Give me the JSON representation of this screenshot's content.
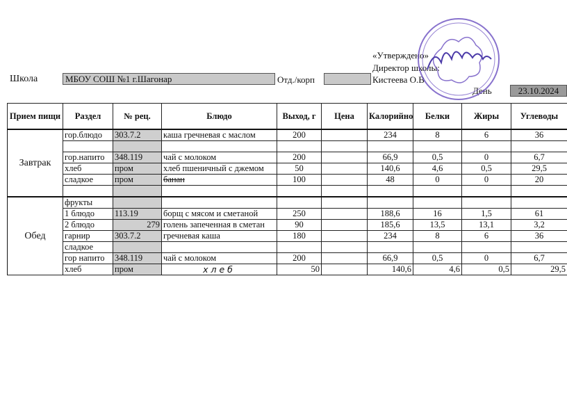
{
  "header": {
    "school_label": "Школа",
    "school_value": "МБОУ СОШ №1 г.Шагонар",
    "dept_label": "Отд./корп",
    "dept_value": "",
    "approved": "«Утверждено»",
    "director": "Директор школы:",
    "director_name": "Кистеева О.В",
    "day_label": "День",
    "date": "23.10.2024"
  },
  "stamp_color": "#6a4fc0",
  "table": {
    "columns": [
      "Прием пищи",
      "Раздел",
      "№ рец.",
      "Блюдо",
      "Выход, г",
      "Цена",
      "Калорийность",
      "Белки",
      "Жиры",
      "Углеводы"
    ],
    "meals": [
      {
        "name": "Завтрак",
        "rows": [
          {
            "section": "гор.блюдо",
            "rec": "303.7.2",
            "dish": "каша гречневая с маслом",
            "out": "200",
            "price": "",
            "kcal": "234",
            "prot": "8",
            "fat": "6",
            "carb": "36"
          },
          {
            "section": "",
            "rec": "",
            "dish": "",
            "out": "",
            "price": "",
            "kcal": "",
            "prot": "",
            "fat": "",
            "carb": ""
          },
          {
            "section": "гор.напито",
            "rec": "348.119",
            "dish": "чай с молоком",
            "out": "200",
            "price": "",
            "kcal": "66,9",
            "prot": "0,5",
            "fat": "0",
            "carb": "6,7"
          },
          {
            "section": "хлеб",
            "rec": "пром",
            "dish": "хлеб пшеничный с джемом",
            "out": "50",
            "price": "",
            "kcal": "140,6",
            "prot": "4,6",
            "fat": "0,5",
            "carb": "29,5"
          },
          {
            "section": "сладкое",
            "rec": "пром",
            "dish": "банан",
            "out": "100",
            "price": "",
            "kcal": "48",
            "prot": "0",
            "fat": "0",
            "carb": "20"
          },
          {
            "section": "",
            "rec": "",
            "dish": "",
            "out": "",
            "price": "",
            "kcal": "",
            "prot": "",
            "fat": "",
            "carb": ""
          }
        ]
      },
      {
        "name": "Обед",
        "rows": [
          {
            "section": "фрукты",
            "rec": "",
            "dish": "",
            "out": "",
            "price": "",
            "kcal": "",
            "prot": "",
            "fat": "",
            "carb": ""
          },
          {
            "section": "1 блюдо",
            "rec": "113.19",
            "dish": "борщ с мясом и сметаной",
            "out": "250",
            "price": "",
            "kcal": "188,6",
            "prot": "16",
            "fat": "1,5",
            "carb": "61"
          },
          {
            "section": "2 блюдо",
            "rec": "279",
            "dish": "голень запеченная в сметан",
            "out": "90",
            "price": "",
            "kcal": "185,6",
            "prot": "13,5",
            "fat": "13,1",
            "carb": "3,2"
          },
          {
            "section": "гарнир",
            "rec": "303.7.2",
            "dish": "гречневая каша",
            "out": "180",
            "price": "",
            "kcal": "234",
            "prot": "8",
            "fat": "6",
            "carb": "36"
          },
          {
            "section": "сладкое",
            "rec": "",
            "dish": "",
            "out": "",
            "price": "",
            "kcal": "",
            "prot": "",
            "fat": "",
            "carb": ""
          },
          {
            "section": "гор напито",
            "rec": "348.119",
            "dish": "чай с молоком",
            "out": "200",
            "price": "",
            "kcal": "66,9",
            "prot": "0,5",
            "fat": "0",
            "carb": "6,7"
          },
          {
            "section": "хлеб",
            "rec": "пром",
            "dish": "хлеб",
            "out": "50",
            "price": "",
            "kcal": "140,6",
            "prot": "4,6",
            "fat": "0,5",
            "carb": "29,5"
          }
        ]
      }
    ]
  }
}
